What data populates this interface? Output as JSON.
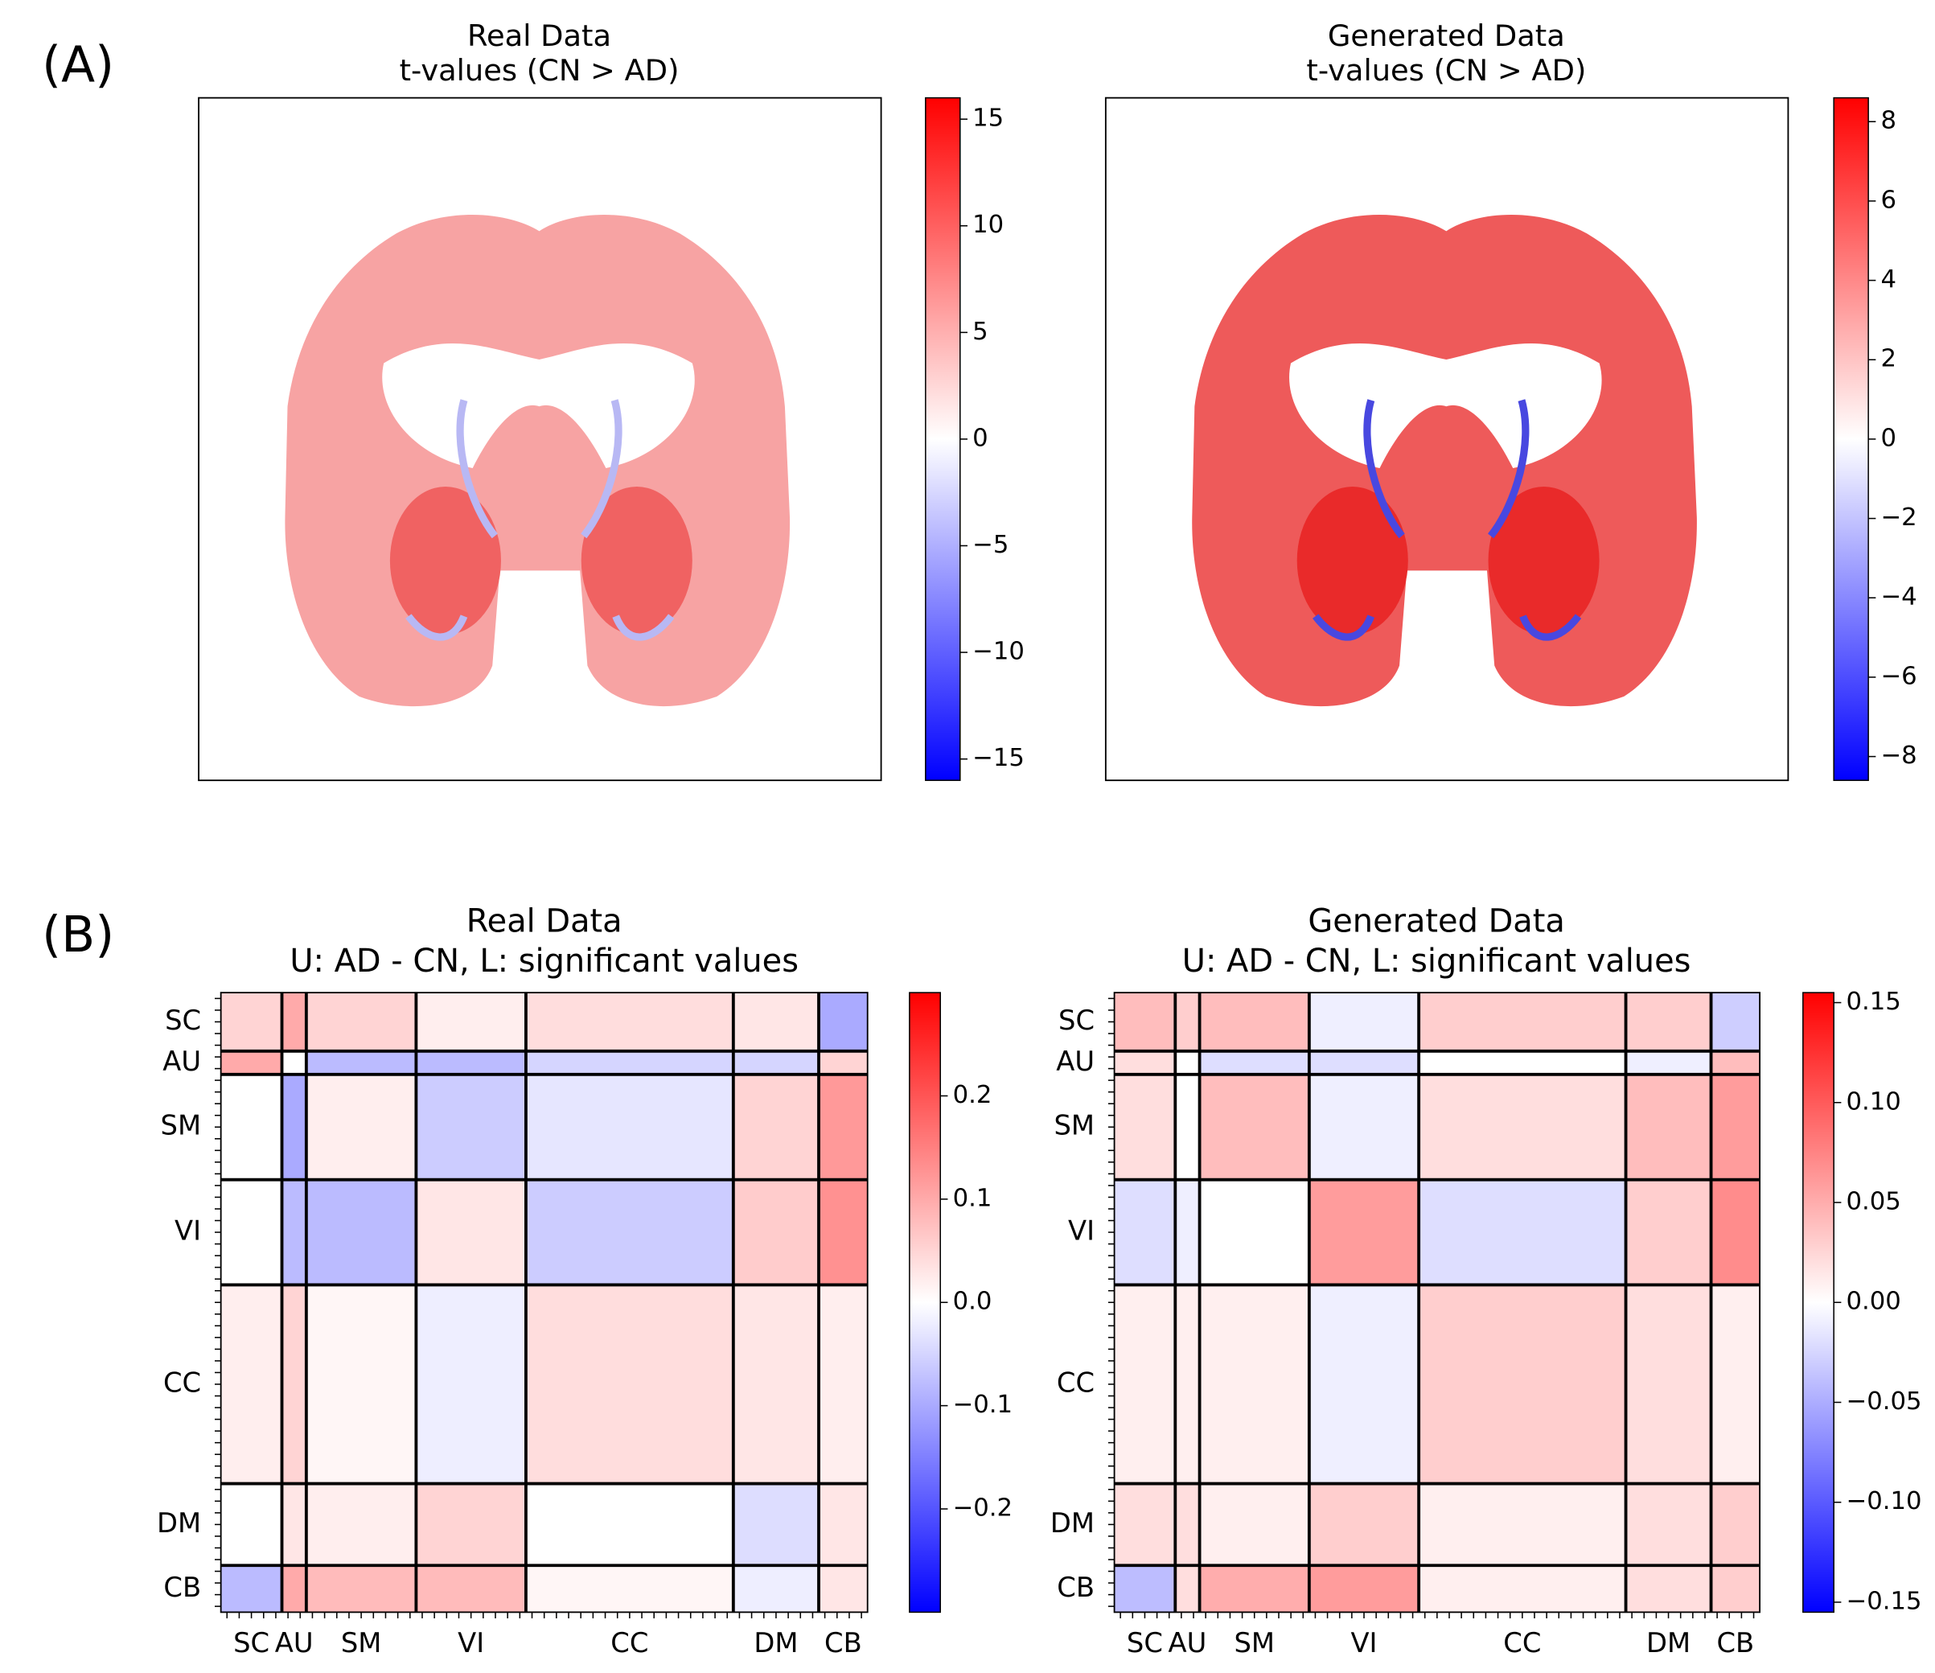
{
  "chart_data": [
    {
      "type": "image",
      "panel": "(A)",
      "title": [
        "Real Data",
        "t-values (CN > AD)"
      ],
      "cmap": [
        "#0000ff",
        "#ffffff",
        "#ff0000"
      ],
      "clim": [
        -16,
        16
      ],
      "cticks": [
        {
          "value": -15,
          "label": "−15"
        },
        {
          "value": -10,
          "label": "−10"
        },
        {
          "value": -5,
          "label": "−5"
        },
        0,
        5,
        10,
        15
      ]
    },
    {
      "type": "image",
      "title": [
        "Generated Data",
        "t-values (CN > AD)"
      ],
      "cmap": [
        "#0000ff",
        "#ffffff",
        "#ff0000"
      ],
      "clim": [
        -8.6,
        8.6
      ],
      "cticks": [
        {
          "value": -8,
          "label": "−8"
        },
        {
          "value": -6,
          "label": "−6"
        },
        {
          "value": -4,
          "label": "−4"
        },
        {
          "value": -2,
          "label": "−2"
        },
        0,
        2,
        4,
        6,
        8
      ]
    },
    {
      "type": "matrix",
      "panel": "(B)",
      "title": [
        "Real Data",
        "U: AD - CN, L: significant values"
      ],
      "cmap": [
        "#0000ff",
        "#ffffff",
        "#ff0000"
      ],
      "clim": [
        -0.3,
        0.3
      ],
      "cticks": [
        {
          "value": -0.2,
          "label": "−0.2"
        },
        {
          "value": -0.1,
          "label": "−0.1"
        },
        {
          "value": 0,
          "label": "0.0"
        },
        0.1,
        0.2
      ],
      "networks": [
        "SC",
        "AU",
        "SM",
        "VI",
        "CC",
        "DM",
        "CB"
      ],
      "network_sizes": [
        5,
        2,
        9,
        9,
        17,
        7,
        4
      ],
      "values": [
        [
          0.05,
          0.1,
          0.05,
          0.02,
          0.04,
          0.03,
          -0.1
        ],
        [
          0.1,
          0.0,
          -0.08,
          -0.08,
          -0.05,
          -0.05,
          0.05
        ],
        [
          0.0,
          -0.1,
          0.02,
          -0.06,
          -0.03,
          0.05,
          0.12
        ],
        [
          0.0,
          -0.08,
          -0.08,
          0.03,
          -0.06,
          0.06,
          0.13
        ],
        [
          0.02,
          0.05,
          0.01,
          -0.02,
          0.04,
          0.03,
          0.02
        ],
        [
          0.0,
          0.03,
          0.02,
          0.05,
          0.0,
          -0.04,
          0.03
        ],
        [
          -0.08,
          0.1,
          0.08,
          0.08,
          0.01,
          -0.02,
          0.03
        ]
      ]
    },
    {
      "type": "matrix",
      "title": [
        "Generated Data",
        "U: AD - CN, L: significant values"
      ],
      "cmap": [
        "#0000ff",
        "#ffffff",
        "#ff0000"
      ],
      "clim": [
        -0.155,
        0.155
      ],
      "cticks": [
        {
          "value": -0.15,
          "label": "−0.15"
        },
        {
          "value": -0.1,
          "label": "−0.10"
        },
        {
          "value": -0.05,
          "label": "−0.05"
        },
        {
          "value": 0,
          "label": "0.00"
        },
        {
          "value": 0.05,
          "label": "0.05"
        },
        {
          "value": 0.1,
          "label": "0.10"
        },
        0.15
      ],
      "networks": [
        "SC",
        "AU",
        "SM",
        "VI",
        "CC",
        "DM",
        "CB"
      ],
      "network_sizes": [
        5,
        2,
        9,
        9,
        17,
        7,
        4
      ],
      "values": [
        [
          0.04,
          0.03,
          0.04,
          -0.01,
          0.03,
          0.03,
          -0.03
        ],
        [
          0.02,
          0.0,
          -0.02,
          -0.02,
          0.0,
          -0.01,
          0.04
        ],
        [
          0.02,
          0.0,
          0.04,
          -0.01,
          0.02,
          0.04,
          0.06
        ],
        [
          -0.02,
          -0.01,
          0.0,
          0.06,
          -0.02,
          0.03,
          0.07
        ],
        [
          0.01,
          0.01,
          0.01,
          -0.01,
          0.03,
          0.02,
          0.01
        ],
        [
          0.02,
          0.02,
          0.01,
          0.03,
          0.01,
          0.02,
          0.03
        ],
        [
          -0.04,
          0.02,
          0.05,
          0.06,
          0.01,
          0.02,
          0.03
        ]
      ]
    }
  ]
}
